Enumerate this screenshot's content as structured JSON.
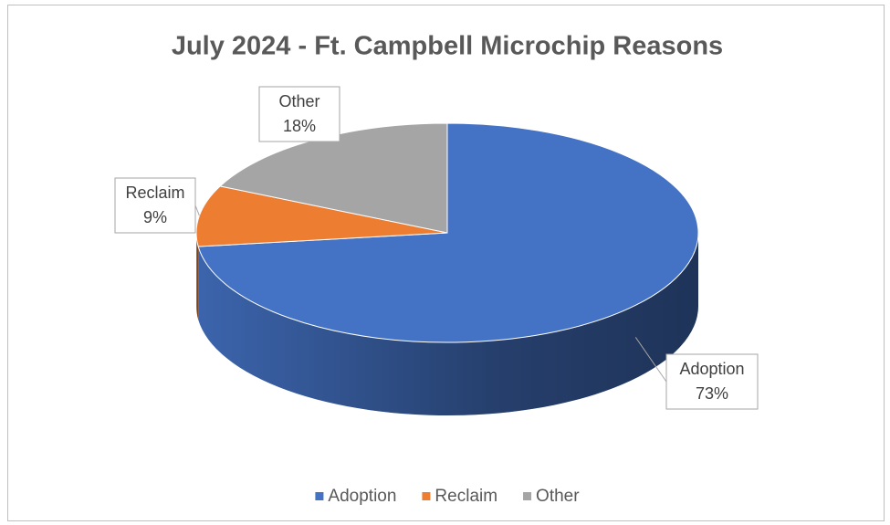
{
  "chart_data": {
    "type": "pie",
    "title": "July 2024 - Ft. Campbell Microchip Reasons",
    "categories": [
      "Adoption",
      "Reclaim",
      "Other"
    ],
    "values": [
      73,
      9,
      18
    ],
    "value_labels": [
      "73%",
      "9%",
      "18%"
    ],
    "colors": [
      "#4472c4",
      "#ed7d31",
      "#a5a5a5"
    ],
    "legend": "bottom"
  }
}
